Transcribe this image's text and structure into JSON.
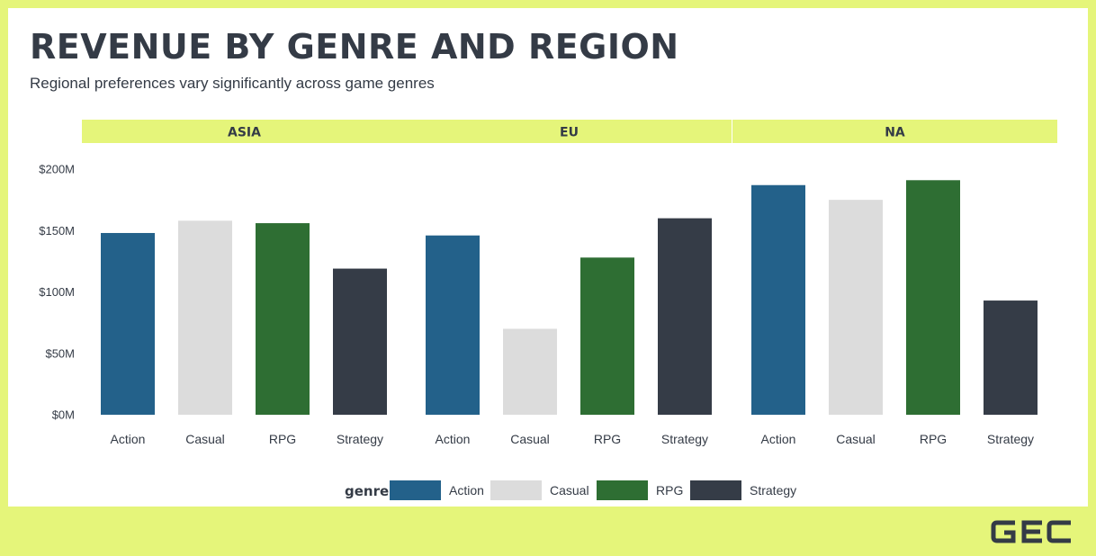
{
  "title": "REVENUE BY GENRE AND REGION",
  "subtitle": "Regional preferences vary significantly across game genres",
  "logo_text": "GEC",
  "legend": {
    "title": "genre"
  },
  "chart_data": {
    "type": "bar",
    "facets": [
      "ASIA",
      "EU",
      "NA"
    ],
    "categories": [
      "Action",
      "Casual",
      "RPG",
      "Strategy"
    ],
    "colors": {
      "Action": "#23618a",
      "Casual": "#dcdcdc",
      "RPG": "#2e6e33",
      "Strategy": "#353c47"
    },
    "values": {
      "ASIA": [
        148,
        158,
        156,
        119
      ],
      "EU": [
        146,
        70,
        128,
        160
      ],
      "NA": [
        187,
        175,
        191,
        93
      ]
    },
    "y_ticks": [
      "$0M",
      "$50M",
      "$100M",
      "$150M",
      "$200M"
    ],
    "y_tick_values": [
      0,
      50,
      100,
      150,
      200
    ],
    "ylim": [
      0,
      200
    ],
    "unit": "M",
    "xlabel": "",
    "ylabel": "",
    "legend_position": "bottom",
    "grid": false
  }
}
